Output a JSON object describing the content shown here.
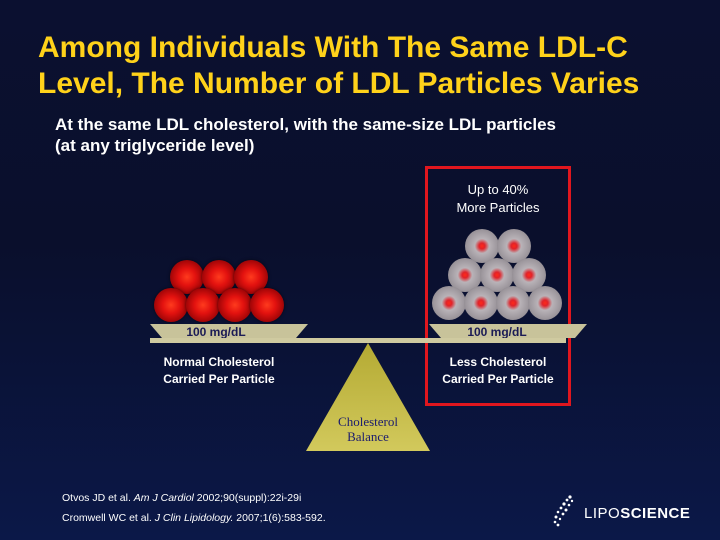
{
  "slide": {
    "title_line1": "Among Individuals With The Same LDL-C",
    "title_line2": "Level, The Number of LDL Particles Varies",
    "subtitle_line1": "At the same LDL cholesterol, with the same-size LDL particles",
    "subtitle_line2": "(at any triglyceride level)"
  },
  "annotation": {
    "line1": "Up to 40%",
    "line2": "More Particles"
  },
  "left_tray": {
    "value_label": "100 mg/dL",
    "caption_line1": "Normal Cholesterol",
    "caption_line2": "Carried Per Particle"
  },
  "right_tray": {
    "value_label": "100 mg/dL",
    "caption_line1": "Less Cholesterol",
    "caption_line2": "Carried Per Particle"
  },
  "fulcrum": {
    "line1": "Cholesterol",
    "line2": "Balance"
  },
  "references": {
    "ref1_authors": "Otvos JD et al. ",
    "ref1_journal": "Am J Cardiol",
    "ref1_rest": " 2002;90(suppl):22i-29i",
    "ref2_authors": "Cromwell WC et al. ",
    "ref2_journal": "J Clin Lipidology.",
    "ref2_rest": " 2007;1(6):583-592."
  },
  "logo": {
    "text_light": "LIPO",
    "text_bold": "SCIENCE"
  },
  "colors": {
    "title": "#ffd21a",
    "highlight_border": "#e0161e",
    "tray": "#c8c39a",
    "fulcrum": "#c7bd4c",
    "background": "#0a0f2c"
  }
}
